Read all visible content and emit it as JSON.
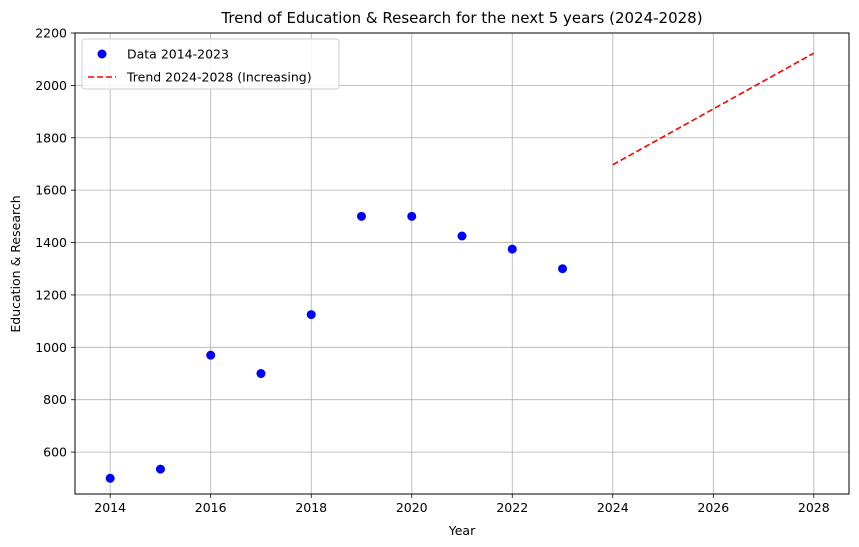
{
  "chart_data": {
    "type": "scatter",
    "title": "Trend of Education & Research for the next 5 years (2024-2028)",
    "xlabel": "Year",
    "ylabel": "Education & Research",
    "xlim": [
      2013.3,
      2028.7
    ],
    "ylim": [
      440,
      2200
    ],
    "xticks": [
      2014,
      2016,
      2018,
      2020,
      2022,
      2024,
      2026,
      2028
    ],
    "yticks": [
      600,
      800,
      1000,
      1200,
      1400,
      1600,
      1800,
      2000,
      2200
    ],
    "grid": true,
    "legend_position": "top-left",
    "series": [
      {
        "name": "Data 2014-2023",
        "kind": "scatter",
        "color": "#0000ff",
        "x": [
          2014,
          2015,
          2016,
          2017,
          2018,
          2019,
          2020,
          2021,
          2022,
          2023
        ],
        "y": [
          500,
          535,
          970,
          900,
          1125,
          1500,
          1500,
          1425,
          1375,
          1300
        ]
      },
      {
        "name": "Trend 2024-2028 (Increasing)",
        "kind": "line",
        "linestyle": "dashed",
        "color": "#ff0000",
        "x": [
          2024,
          2028
        ],
        "y": [
          1697,
          2123
        ]
      }
    ]
  }
}
